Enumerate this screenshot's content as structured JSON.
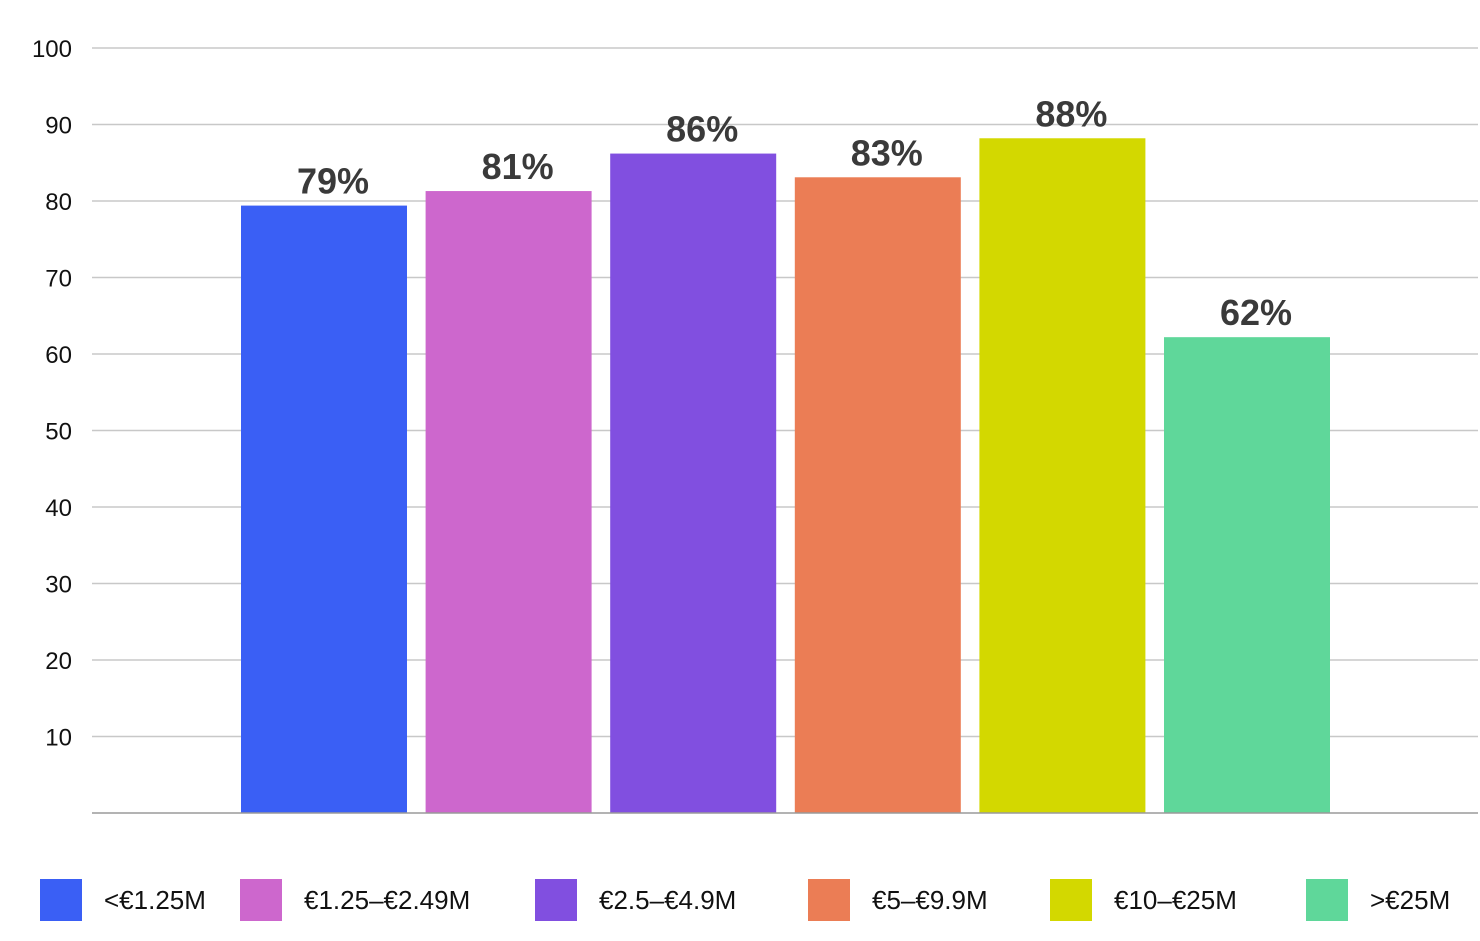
{
  "chart_data": {
    "type": "bar",
    "categories": [
      "<€1.25M",
      "€1.25–€2.49M",
      "€2.5–€4.9M",
      "€5–€9.9M",
      "€10–€25M",
      ">€25M"
    ],
    "values": [
      79.4,
      81.3,
      86.2,
      83.1,
      88.2,
      62.2
    ],
    "data_labels": [
      "79%",
      "81%",
      "86%",
      "83%",
      "88%",
      "62%"
    ],
    "colors": [
      "#3a5ff5",
      "#cd67cd",
      "#814fe0",
      "#eb7d55",
      "#d3d800",
      "#5fd79a"
    ],
    "yticks": [
      "10",
      "20",
      "30",
      "40",
      "50",
      "60",
      "70",
      "80",
      "90",
      "100"
    ],
    "ylim": [
      0,
      100
    ],
    "grid": true,
    "legend_position": "bottom"
  },
  "legend": [
    {
      "label": "<€1.25M",
      "color": "#3a5ff5"
    },
    {
      "label": "€1.25–€2.49M",
      "color": "#cd67cd"
    },
    {
      "label": "€2.5–€4.9M",
      "color": "#814fe0"
    },
    {
      "label": "€5–€9.9M",
      "color": "#eb7d55"
    },
    {
      "label": "€10–€25M",
      "color": "#d3d800"
    },
    {
      "label": ">€25M",
      "color": "#5fd79a"
    }
  ]
}
